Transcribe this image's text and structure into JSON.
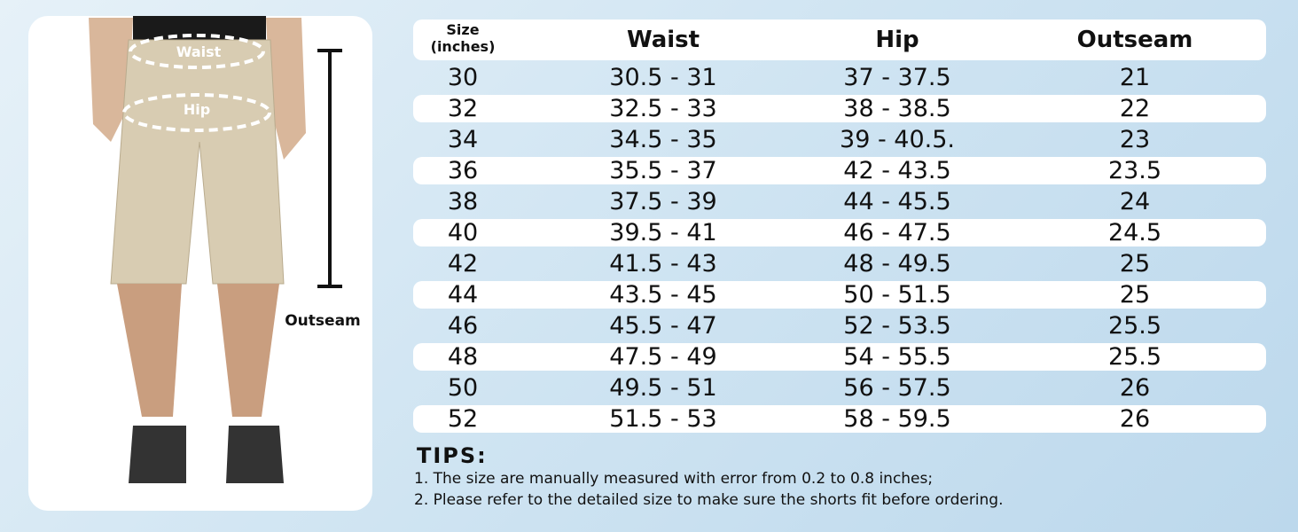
{
  "figure": {
    "labels": {
      "waist": "Waist",
      "hip": "Hip",
      "outseam": "Outseam"
    }
  },
  "table": {
    "header": [
      "Size (inches)",
      "Waist",
      "Hip",
      "Outseam"
    ],
    "rows": [
      [
        "30",
        "30.5 - 31",
        "37 - 37.5",
        "21"
      ],
      [
        "32",
        "32.5 - 33",
        "38 - 38.5",
        "22"
      ],
      [
        "34",
        "34.5 - 35",
        "39 - 40.5.",
        "23"
      ],
      [
        "36",
        "35.5 - 37",
        "42 - 43.5",
        "23.5"
      ],
      [
        "38",
        "37.5 - 39",
        "44 - 45.5",
        "24"
      ],
      [
        "40",
        "39.5 - 41",
        "46 - 47.5",
        "24.5"
      ],
      [
        "42",
        "41.5 - 43",
        "48 - 49.5",
        "25"
      ],
      [
        "44",
        "43.5 - 45",
        "50 - 51.5",
        "25"
      ],
      [
        "46",
        "45.5 - 47",
        "52 - 53.5",
        "25.5"
      ],
      [
        "48",
        "47.5 - 49",
        "54 - 55.5",
        "25.5"
      ],
      [
        "50",
        "49.5 - 51",
        "56 - 57.5",
        "26"
      ],
      [
        "52",
        "51.5 - 53",
        "58 - 59.5",
        "26"
      ]
    ]
  },
  "tips": {
    "title": "TIPS:",
    "items": [
      "1. The size are manually measured with error from 0.2 to 0.8 inches;",
      "2. Please refer to the detailed size to make sure the shorts fit before ordering."
    ]
  }
}
